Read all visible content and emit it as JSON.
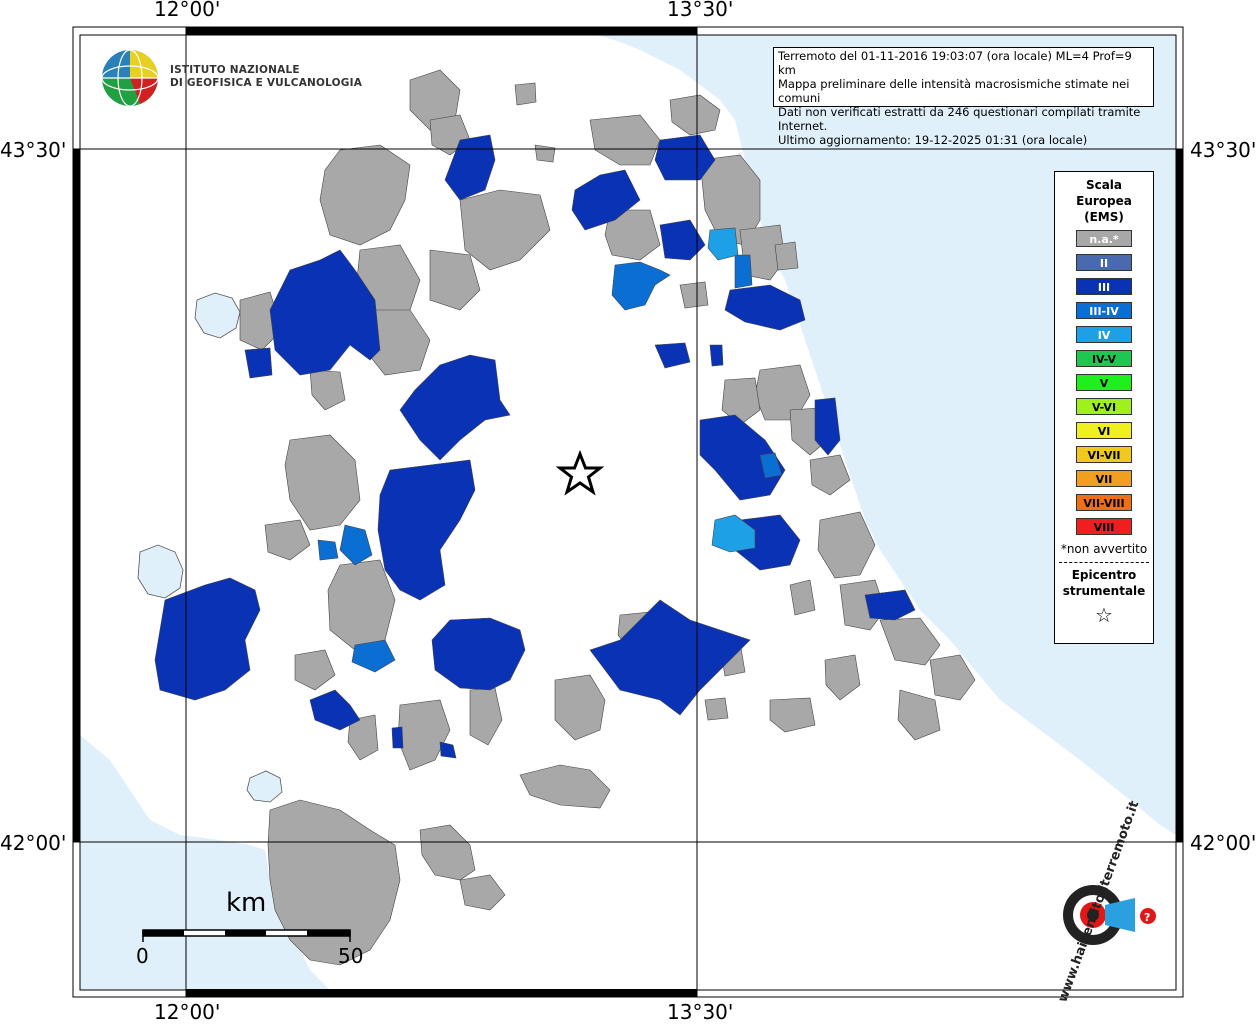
{
  "institute": {
    "line1": "ISTITUTO NAZIONALE",
    "line2": "DI GEOFISICA E VULCANOLOGIA"
  },
  "info": {
    "line1": "Terremoto del 01-11-2016 19:03:07 (ora locale) ML=4 Prof=9 km",
    "line2": "Mappa preliminare delle intensità macrosismiche stimate nei comuni",
    "line3": "Dati non verificati estratti da 246 questionari compilati tramite Internet.",
    "line4": "Ultimo aggiornamento: 19-12-2025 01:31 (ora locale)"
  },
  "coords": {
    "lon_left": "12°00'",
    "lon_right": "13°30'",
    "lat_top": "43°30'",
    "lat_bottom": "42°00'"
  },
  "legend": {
    "title1": "Scala",
    "title2": "Europea",
    "title3": "(EMS)",
    "classes": [
      {
        "label": "n.a.*",
        "color": "#a8a8a8"
      },
      {
        "label": "II",
        "color": "#4a6ab0"
      },
      {
        "label": "III",
        "color": "#0a32b4"
      },
      {
        "label": "III-IV",
        "color": "#0a6ed2"
      },
      {
        "label": "IV",
        "color": "#1ea0e6"
      },
      {
        "label": "IV-V",
        "color": "#1ec850"
      },
      {
        "label": "V",
        "color": "#1ef01e"
      },
      {
        "label": "V-VI",
        "color": "#a0f01e"
      },
      {
        "label": "VI",
        "color": "#f0f01e"
      },
      {
        "label": "VI-VII",
        "color": "#f0c81e"
      },
      {
        "label": "VII",
        "color": "#f0a01e"
      },
      {
        "label": "VII-VIII",
        "color": "#f06e14"
      },
      {
        "label": "VIII",
        "color": "#f01e1e"
      }
    ],
    "note": "*non avvertito",
    "epi1": "Epicentro",
    "epi2": "strumentale",
    "star": "☆"
  },
  "scale": {
    "unit": "km",
    "min": "0",
    "max": "50"
  },
  "watermark": {
    "text": "www.haisentitoilterremoto.it"
  },
  "colors": {
    "sea": "#e0f0fb",
    "lake": "#e0f0fb",
    "na": "#a8a8a8",
    "III": "#0a32b4",
    "IIIIV": "#0a6ed2",
    "IV": "#1ea0e6"
  }
}
